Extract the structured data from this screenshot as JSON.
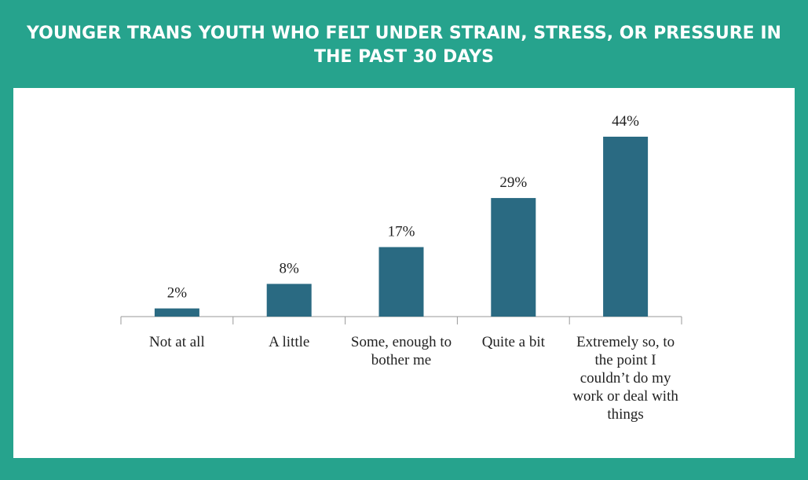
{
  "chart_data": {
    "type": "bar",
    "title": "YOUNGER TRANS YOUTH WHO FELT UNDER STRAIN, STRESS, OR PRESSURE IN THE PAST 30 DAYS",
    "categories": [
      "Not at all",
      "A little",
      "Some, enough to bother me",
      "Quite a bit",
      "Extremely so, to the point I couldn’t do my work or deal with things"
    ],
    "values": [
      2,
      8,
      17,
      29,
      44
    ],
    "value_labels": [
      "2%",
      "8%",
      "17%",
      "29%",
      "44%"
    ],
    "color": "#2a6a82"
  }
}
